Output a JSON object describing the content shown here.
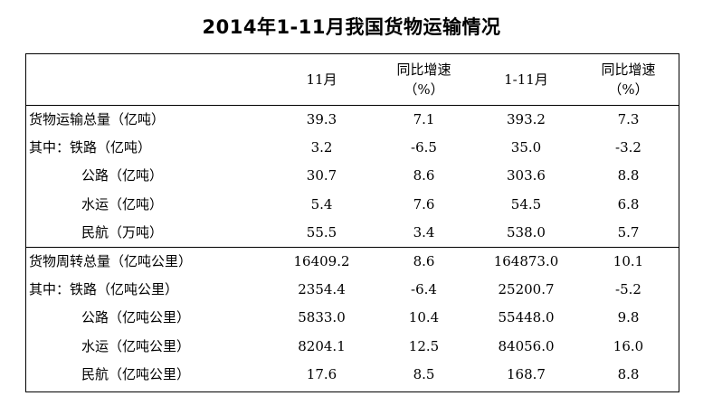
{
  "chart_data": {
    "type": "table",
    "title": "2014年1-11月我国货物运输情况",
    "columns": [
      "",
      "11月",
      "同比增速\n（%）",
      "1-11月",
      "同比增速\n（%）"
    ],
    "rows": [
      {
        "label": "货物运输总量（亿吨）",
        "indent": false,
        "group_start": false,
        "values": [
          "39.3",
          "7.1",
          "393.2",
          "7.3"
        ]
      },
      {
        "label": "其中：铁路（亿吨）",
        "indent": false,
        "group_start": false,
        "values": [
          "3.2",
          "-6.5",
          "35.0",
          "-3.2"
        ]
      },
      {
        "label": "公路（亿吨）",
        "indent": true,
        "group_start": false,
        "values": [
          "30.7",
          "8.6",
          "303.6",
          "8.8"
        ]
      },
      {
        "label": "水运（亿吨）",
        "indent": true,
        "group_start": false,
        "values": [
          "5.4",
          "7.6",
          "54.5",
          "6.8"
        ]
      },
      {
        "label": "民航（万吨）",
        "indent": true,
        "group_start": false,
        "values": [
          "55.5",
          "3.4",
          "538.0",
          "5.7"
        ]
      },
      {
        "label": "货物周转总量（亿吨公里）",
        "indent": false,
        "group_start": true,
        "values": [
          "16409.2",
          "8.6",
          "164873.0",
          "10.1"
        ]
      },
      {
        "label": "其中：铁路（亿吨公里）",
        "indent": false,
        "group_start": false,
        "values": [
          "2354.4",
          "-6.4",
          "25200.7",
          "-5.2"
        ]
      },
      {
        "label": "公路（亿吨公里）",
        "indent": true,
        "group_start": false,
        "values": [
          "5833.0",
          "10.4",
          "55448.0",
          "9.8"
        ]
      },
      {
        "label": "水运（亿吨公里）",
        "indent": true,
        "group_start": false,
        "values": [
          "8204.1",
          "12.5",
          "84056.0",
          "16.0"
        ]
      },
      {
        "label": "民航（亿吨公里）",
        "indent": true,
        "group_start": false,
        "values": [
          "17.6",
          "8.5",
          "168.7",
          "8.8"
        ]
      }
    ]
  }
}
